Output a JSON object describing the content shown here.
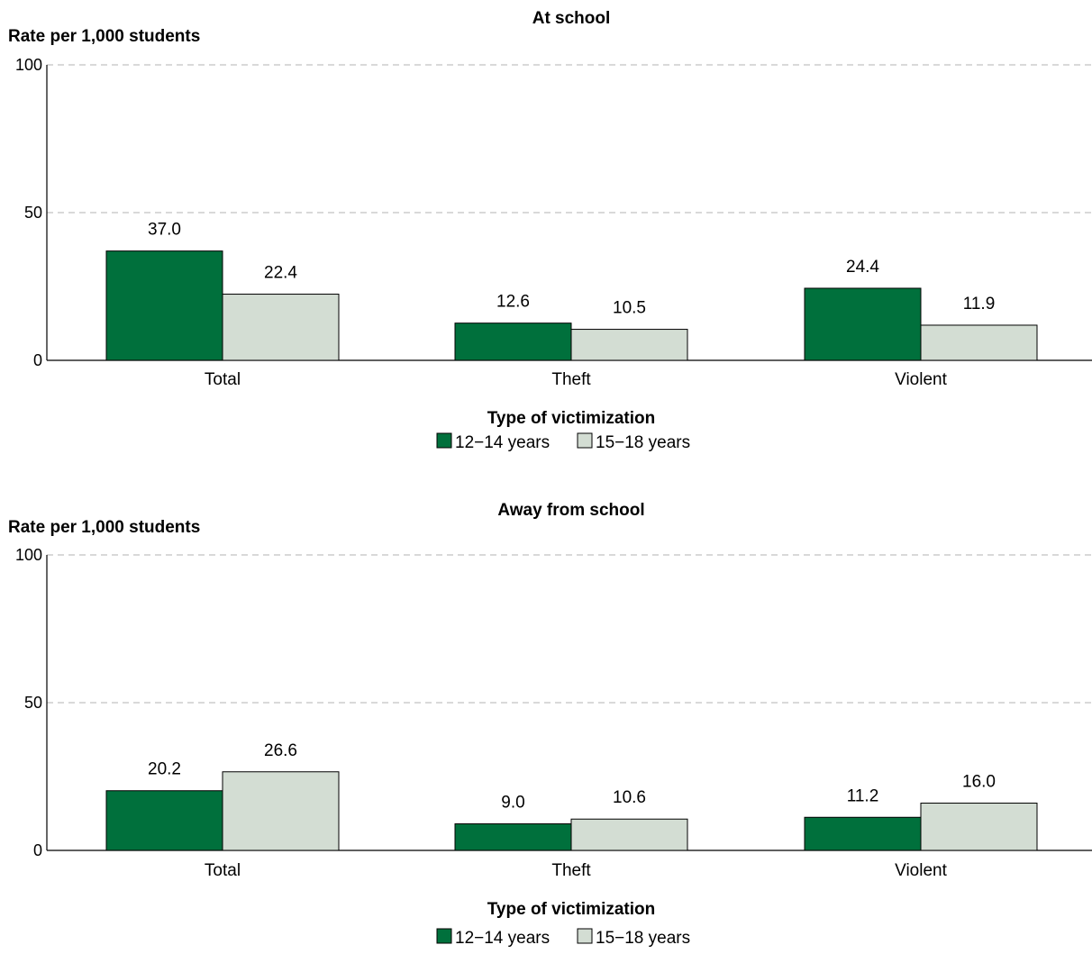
{
  "chart_data": [
    {
      "type": "bar",
      "title": "At school",
      "ylabel": "Rate per 1,000 students",
      "xlabel": "Type of victimization",
      "categories": [
        "Total",
        "Theft",
        "Violent"
      ],
      "series": [
        {
          "name": "12−14 years",
          "color": "#00703c",
          "values": [
            37.0,
            12.6,
            24.4
          ],
          "labels": [
            "37.0",
            "12.6",
            "24.4"
          ]
        },
        {
          "name": "15−18 years",
          "color": "#d3ddd3",
          "values": [
            22.4,
            10.5,
            11.9
          ],
          "labels": [
            "22.4",
            "10.5",
            "11.9"
          ]
        }
      ],
      "ylim": [
        0,
        100
      ],
      "yticks": [
        "0",
        "50",
        "100"
      ],
      "grid": true,
      "legend": "bottom-center"
    },
    {
      "type": "bar",
      "title": "Away from school",
      "ylabel": "Rate per 1,000 students",
      "xlabel": "Type of victimization",
      "categories": [
        "Total",
        "Theft",
        "Violent"
      ],
      "series": [
        {
          "name": "12−14 years",
          "color": "#00703c",
          "values": [
            20.2,
            9.0,
            11.2
          ],
          "labels": [
            "20.2",
            "9.0",
            "11.2"
          ]
        },
        {
          "name": "15−18 years",
          "color": "#d3ddd3",
          "values": [
            26.6,
            10.6,
            16.0
          ],
          "labels": [
            "26.6",
            "10.6",
            "16.0"
          ]
        }
      ],
      "ylim": [
        0,
        100
      ],
      "yticks": [
        "0",
        "50",
        "100"
      ],
      "grid": true,
      "legend": "bottom-center"
    }
  ]
}
